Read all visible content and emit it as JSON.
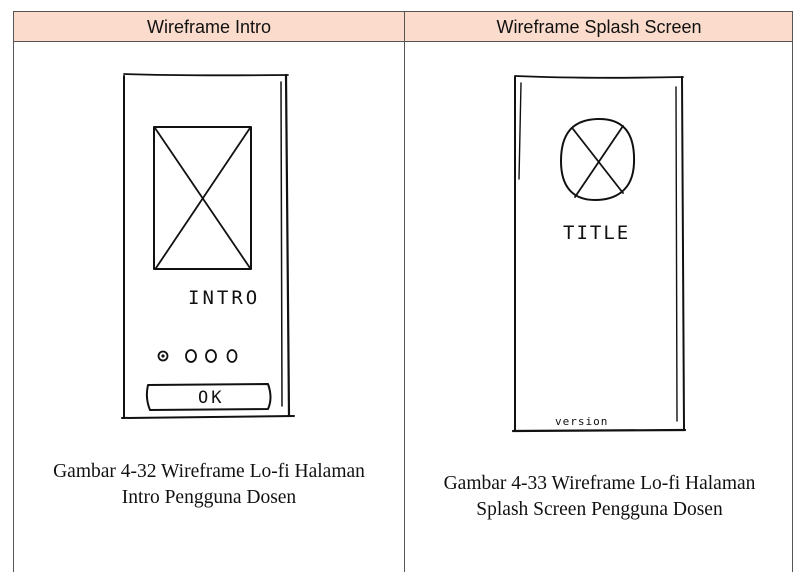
{
  "table": {
    "headers": [
      "Wireframe Intro",
      "Wireframe Splash Screen"
    ]
  },
  "intro_sketch": {
    "heading_text": "INTRO",
    "button_text": "OK"
  },
  "splash_sketch": {
    "title_text": "TITLE",
    "version_text": "version"
  },
  "captions": {
    "left_line1": "Gambar 4-32 Wireframe Lo-fi Halaman",
    "left_line2": "Intro Pengguna Dosen",
    "right_line1": "Gambar 4-33 Wireframe Lo-fi Halaman",
    "right_line2": "Splash Screen Pengguna Dosen"
  }
}
